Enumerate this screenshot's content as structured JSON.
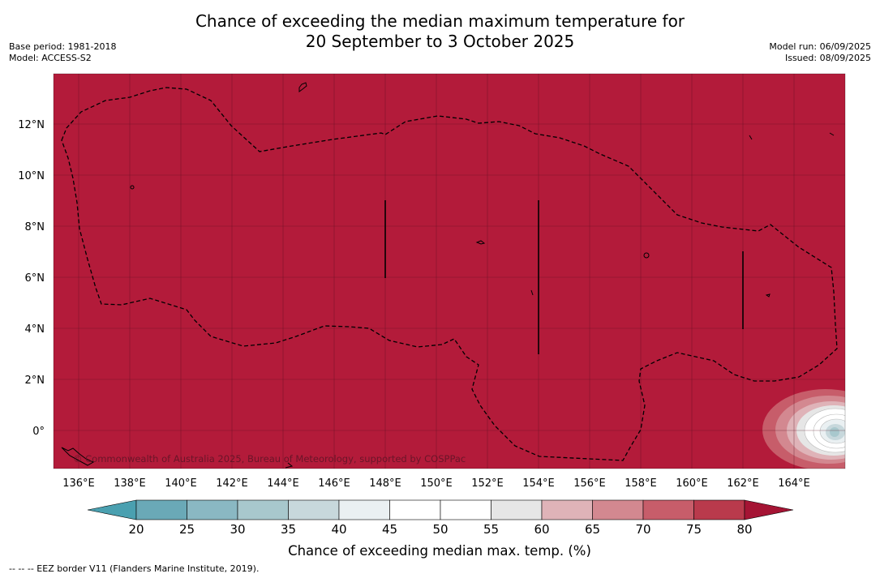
{
  "header": {
    "title_line1": "Chance of exceeding the median maximum temperature for",
    "title_line2": "20 September to 3 October 2025",
    "base_period": "Base period: 1981-2018",
    "model": "Model: ACCESS-S2",
    "model_run": "Model run: 06/09/2025",
    "issued": "Issued: 08/09/2025"
  },
  "map": {
    "lon_labels": [
      "136°E",
      "138°E",
      "140°E",
      "142°E",
      "144°E",
      "146°E",
      "148°E",
      "150°E",
      "152°E",
      "154°E",
      "156°E",
      "158°E",
      "160°E",
      "162°E",
      "164°E"
    ],
    "lat_labels": [
      "12°N",
      "10°N",
      "8°N",
      "6°N",
      "4°N",
      "2°N",
      "0°"
    ],
    "copyright": "© Commonwealth of Australia 2025, Bureau of Meteorology, supported by COSPPac",
    "background_color": "#b31b3a"
  },
  "colorbar": {
    "ticks": [
      "20",
      "25",
      "30",
      "35",
      "40",
      "45",
      "50",
      "55",
      "60",
      "65",
      "70",
      "75",
      "80"
    ],
    "colors": [
      "#6aa9b7",
      "#8ab8c3",
      "#a8c8cd",
      "#c7d8dc",
      "#eaf0f2",
      "#ffffff",
      "#ffffff",
      "#e6e6e6",
      "#dfb3b8",
      "#d38890",
      "#c75d6a",
      "#b93a4c"
    ],
    "low_color": "#4aa0b0",
    "high_color": "#a51434",
    "label": "Chance of exceeding median max. temp. (%)"
  },
  "legend_note": "--  --  -- EEZ border V11 (Flanders Marine Institute, 2019)."
}
